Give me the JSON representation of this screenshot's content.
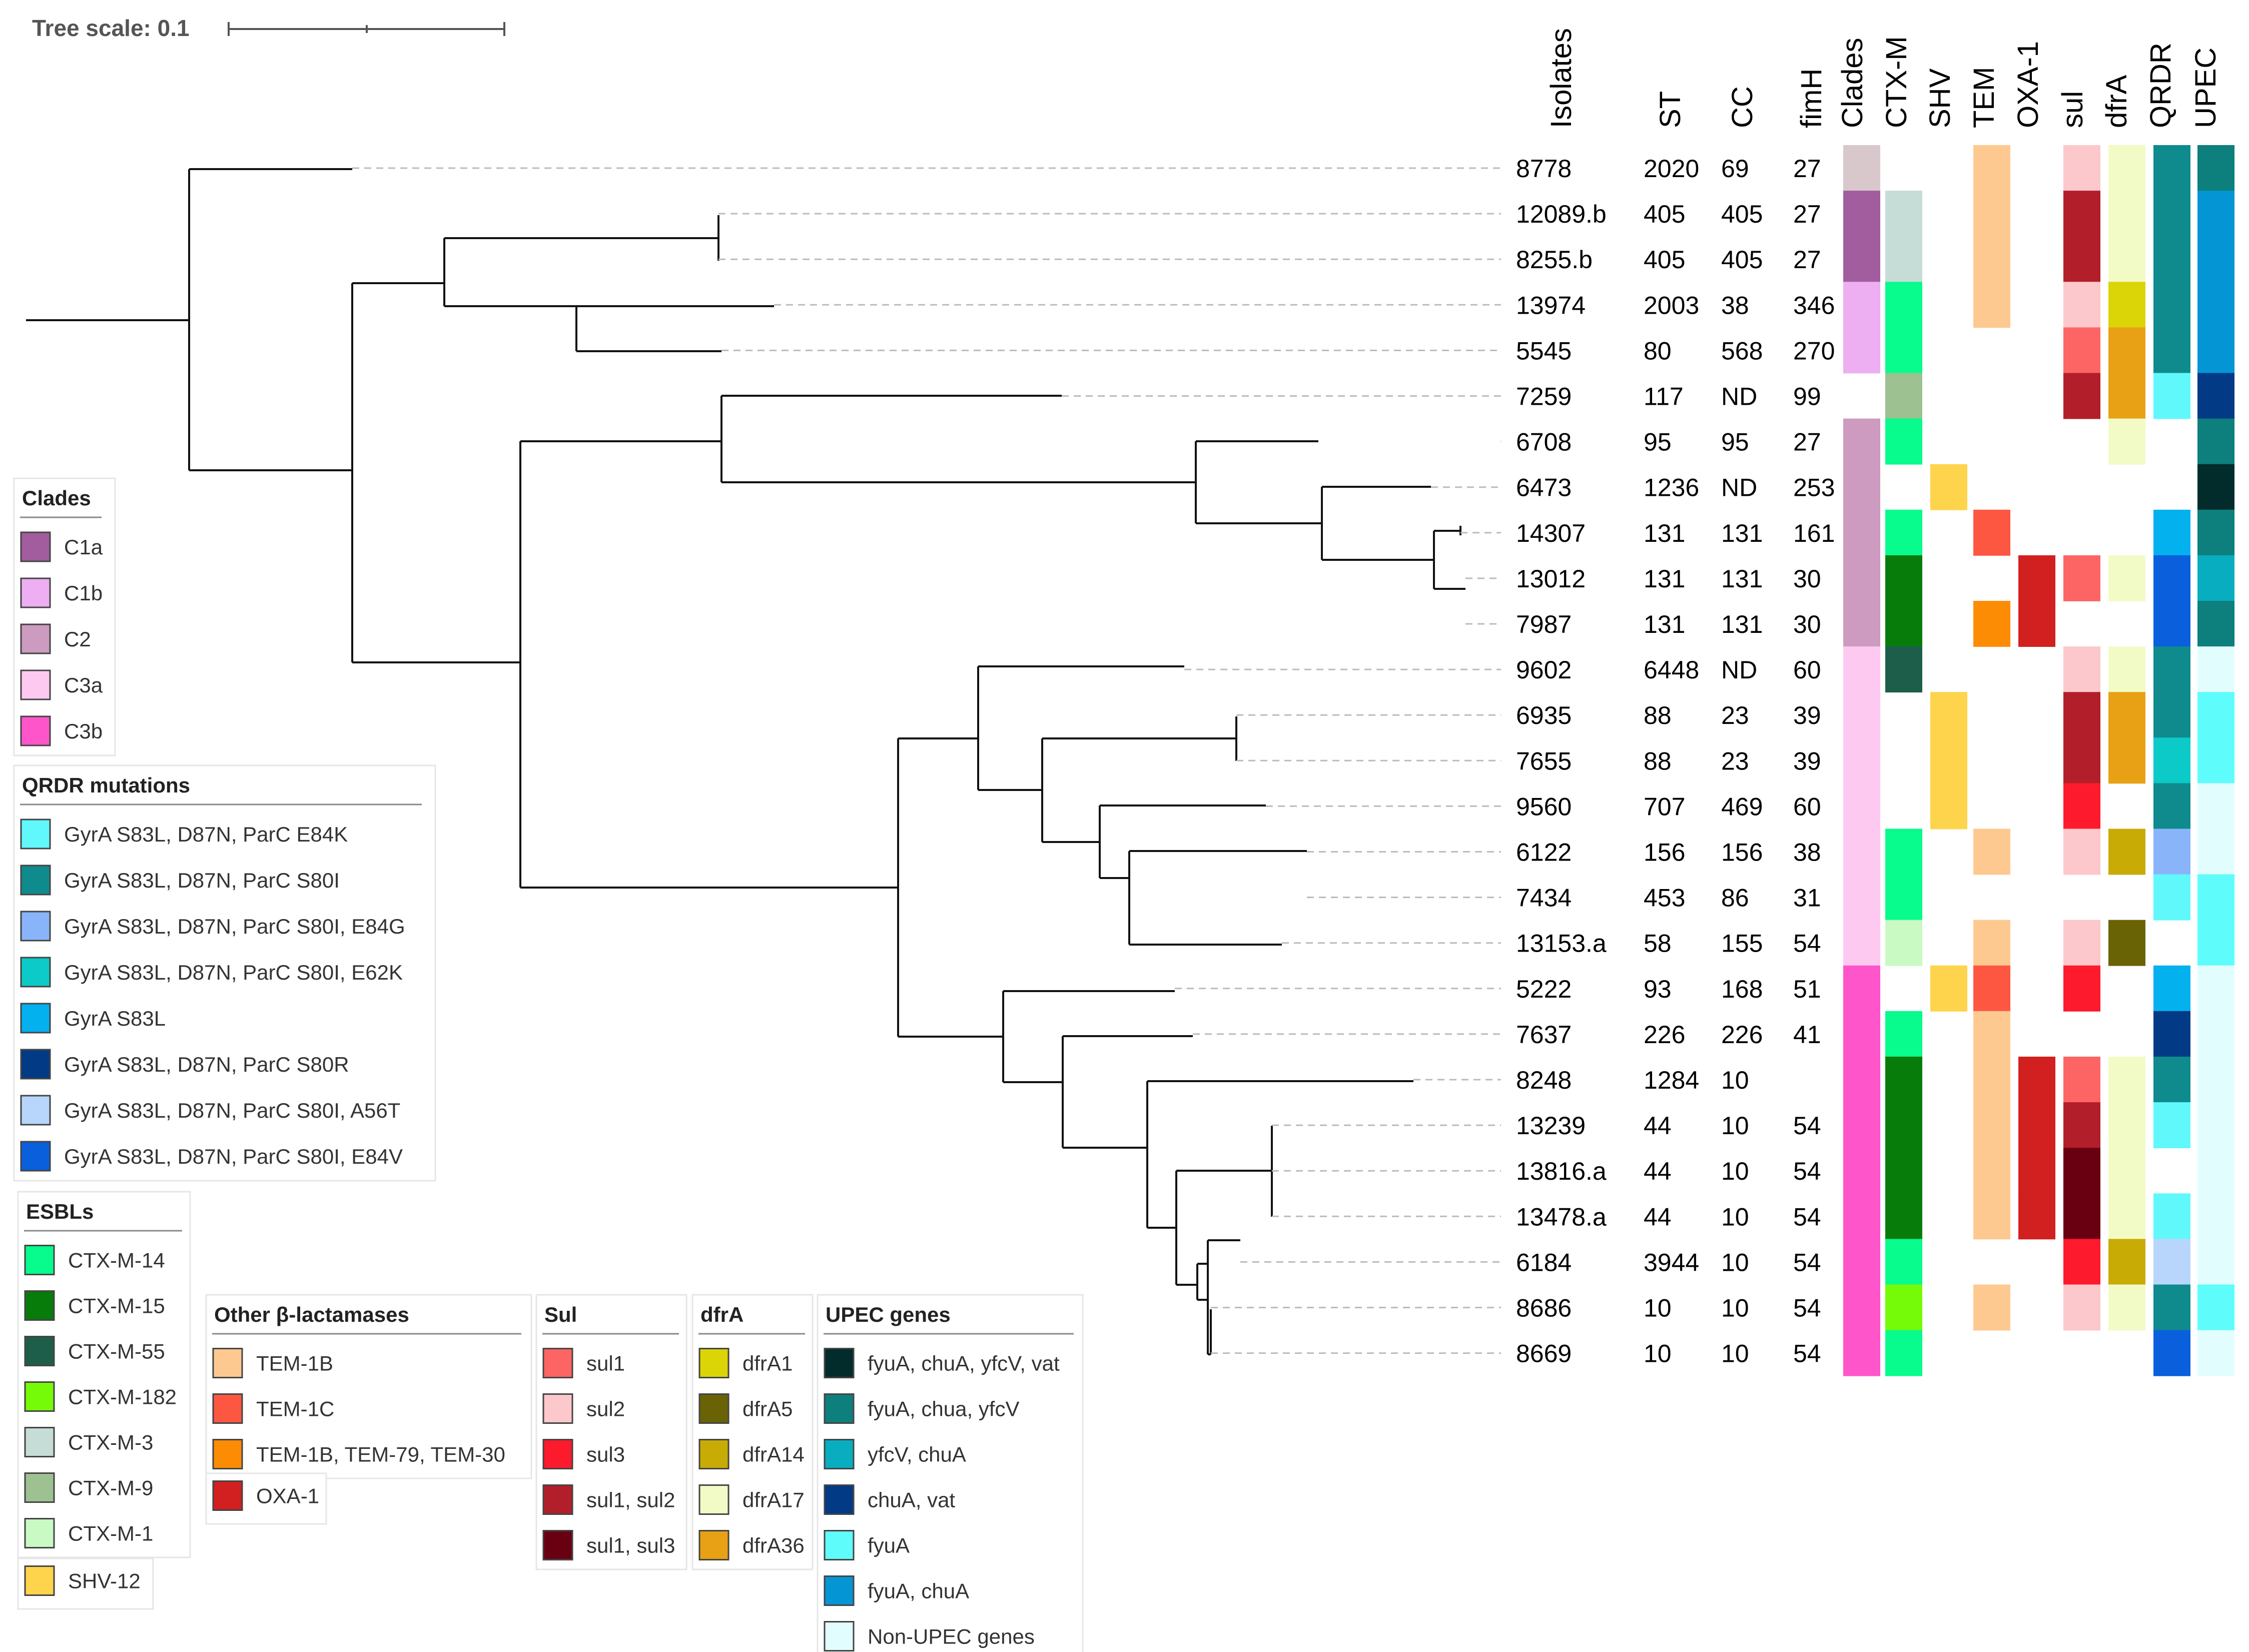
{
  "tree_scale": {
    "label": "Tree scale: 0.1"
  },
  "headers": [
    "Isolates",
    "ST",
    "CC",
    "fimH",
    "Clades",
    "CTX-M",
    "SHV",
    "TEM",
    "OXA-1",
    "sul",
    "dfrA",
    "QRDR",
    "UPEC"
  ],
  "colors": {
    "C1a": "#a25d9f",
    "C1b": "#edaef2",
    "C2": "#cc9bbf",
    "C3a": "#fec9f0",
    "C3b": "#fe55cb",
    "C0": "#d8c8cc",
    "q1": "#61f8fc",
    "q2": "#0f8b8e",
    "q3": "#8ab4f9",
    "q4": "#0ccac7",
    "q5": "#03b1ef",
    "q6": "#033a85",
    "q7": "#b8d6fb",
    "q8": "#0a5fdc",
    "x14": "#07fb8d",
    "x15": "#077c0b",
    "x55": "#1d5e4b",
    "x182": "#75fb08",
    "x3": "#c5ddd6",
    "x9": "#9dc190",
    "x1": "#c9fac3",
    "s12": "#fdd44b",
    "t1b": "#fec990",
    "t1c": "#fd5742",
    "t79": "#fd8c05",
    "oxa": "#d21f1f",
    "su1": "#fd6565",
    "su2": "#fdc8cb",
    "su3": "#fd1a2d",
    "su12": "#b21f2a",
    "su13": "#690012",
    "d1": "#dbd406",
    "d5": "#696306",
    "d14": "#c9ab06",
    "d17": "#f2fbc6",
    "d36": "#e8a114",
    "u1": "#022c2b",
    "u2": "#0d7f7d",
    "u3": "#08aec0",
    "u4": "#023a86",
    "u5": "#5ffcfc",
    "u6": "#0495d4",
    "u7": "#e2fdfd"
  },
  "isolates": [
    {
      "id": "8778",
      "st": "2020",
      "cc": "69",
      "fimh": "27",
      "clade": "C0",
      "ctxm": null,
      "shv": null,
      "tem": "t1b",
      "oxa": null,
      "sul": "su2",
      "dfra": "d17",
      "qrdr": "q2",
      "upec": "u2"
    },
    {
      "id": "12089.b",
      "st": "405",
      "cc": "405",
      "fimh": "27",
      "clade": "C1a",
      "ctxm": "x3",
      "shv": null,
      "tem": "t1b",
      "oxa": null,
      "sul": "su12",
      "dfra": "d17",
      "qrdr": "q2",
      "upec": "u6"
    },
    {
      "id": "8255.b",
      "st": "405",
      "cc": "405",
      "fimh": "27",
      "clade": "C1a",
      "ctxm": "x3",
      "shv": null,
      "tem": "t1b",
      "oxa": null,
      "sul": "su12",
      "dfra": "d17",
      "qrdr": "q2",
      "upec": "u6"
    },
    {
      "id": "13974",
      "st": "2003",
      "cc": "38",
      "fimh": "346",
      "clade": "C1b",
      "ctxm": "x14",
      "shv": null,
      "tem": "t1b",
      "oxa": null,
      "sul": "su2",
      "dfra": "d1",
      "qrdr": "q2",
      "upec": "u6"
    },
    {
      "id": "5545",
      "st": "80",
      "cc": "568",
      "fimh": "270",
      "clade": "C1b",
      "ctxm": "x14",
      "shv": null,
      "tem": null,
      "oxa": null,
      "sul": "su1",
      "dfra": "d36",
      "qrdr": "q2",
      "upec": "u6"
    },
    {
      "id": "7259",
      "st": "117",
      "cc": "ND",
      "fimh": "99",
      "clade": null,
      "ctxm": "x9",
      "shv": null,
      "tem": null,
      "oxa": null,
      "sul": "su12",
      "dfra": "d36",
      "qrdr": "q1",
      "upec": "u4"
    },
    {
      "id": "6708",
      "st": "95",
      "cc": "95",
      "fimh": "27",
      "clade": "C2",
      "ctxm": "x14",
      "shv": null,
      "tem": null,
      "oxa": null,
      "sul": null,
      "dfra": "d17",
      "qrdr": null,
      "upec": "u2"
    },
    {
      "id": "6473",
      "st": "1236",
      "cc": "ND",
      "fimh": "253",
      "clade": "C2",
      "ctxm": null,
      "shv": "s12",
      "tem": null,
      "oxa": null,
      "sul": null,
      "dfra": null,
      "qrdr": null,
      "upec": "u1"
    },
    {
      "id": "14307",
      "st": "131",
      "cc": "131",
      "fimh": "161",
      "clade": "C2",
      "ctxm": "x14",
      "shv": null,
      "tem": "t1c",
      "oxa": null,
      "sul": null,
      "dfra": null,
      "qrdr": "q5",
      "upec": "u2"
    },
    {
      "id": "13012",
      "st": "131",
      "cc": "131",
      "fimh": "30",
      "clade": "C2",
      "ctxm": "x15",
      "shv": null,
      "tem": null,
      "oxa": "oxa",
      "sul": "su1",
      "dfra": "d17",
      "qrdr": "q8",
      "upec": "u3"
    },
    {
      "id": "7987",
      "st": "131",
      "cc": "131",
      "fimh": "30",
      "clade": "C2",
      "ctxm": "x15",
      "shv": null,
      "tem": "t79",
      "oxa": "oxa",
      "sul": null,
      "dfra": null,
      "qrdr": "q8",
      "upec": "u2"
    },
    {
      "id": "9602",
      "st": "6448",
      "cc": "ND",
      "fimh": "60",
      "clade": "C3a",
      "ctxm": "x55",
      "shv": null,
      "tem": null,
      "oxa": null,
      "sul": "su2",
      "dfra": "d17",
      "qrdr": "q2",
      "upec": "u7"
    },
    {
      "id": "6935",
      "st": "88",
      "cc": "23",
      "fimh": "39",
      "clade": "C3a",
      "ctxm": null,
      "shv": "s12",
      "tem": null,
      "oxa": null,
      "sul": "su12",
      "dfra": "d36",
      "qrdr": "q2",
      "upec": "u5"
    },
    {
      "id": "7655",
      "st": "88",
      "cc": "23",
      "fimh": "39",
      "clade": "C3a",
      "ctxm": null,
      "shv": "s12",
      "tem": null,
      "oxa": null,
      "sul": "su12",
      "dfra": "d36",
      "qrdr": "q4",
      "upec": "u5"
    },
    {
      "id": "9560",
      "st": "707",
      "cc": "469",
      "fimh": "60",
      "clade": "C3a",
      "ctxm": null,
      "shv": "s12",
      "tem": null,
      "oxa": null,
      "sul": "su3",
      "dfra": null,
      "qrdr": "q2",
      "upec": "u7"
    },
    {
      "id": "6122",
      "st": "156",
      "cc": "156",
      "fimh": "38",
      "clade": "C3a",
      "ctxm": "x14",
      "shv": null,
      "tem": "t1b",
      "oxa": null,
      "sul": "su2",
      "dfra": "d14",
      "qrdr": "q3",
      "upec": "u7"
    },
    {
      "id": "7434",
      "st": "453",
      "cc": "86",
      "fimh": "31",
      "clade": "C3a",
      "ctxm": "x14",
      "shv": null,
      "tem": null,
      "oxa": null,
      "sul": null,
      "dfra": null,
      "qrdr": "q1",
      "upec": "u5"
    },
    {
      "id": "13153.a",
      "st": "58",
      "cc": "155",
      "fimh": "54",
      "clade": "C3a",
      "ctxm": "x1",
      "shv": null,
      "tem": "t1b",
      "oxa": null,
      "sul": "su2",
      "dfra": "d5",
      "qrdr": null,
      "upec": "u5"
    },
    {
      "id": "5222",
      "st": "93",
      "cc": "168",
      "fimh": "51",
      "clade": "C3b",
      "ctxm": null,
      "shv": "s12",
      "tem": "t1c",
      "oxa": null,
      "sul": "su3",
      "dfra": null,
      "qrdr": "q5",
      "upec": "u7"
    },
    {
      "id": "7637",
      "st": "226",
      "cc": "226",
      "fimh": "41",
      "clade": "C3b",
      "ctxm": "x14",
      "shv": null,
      "tem": "t1b",
      "oxa": null,
      "sul": null,
      "dfra": null,
      "qrdr": "q6",
      "upec": "u7"
    },
    {
      "id": "8248",
      "st": "1284",
      "cc": "10",
      "fimh": "",
      "clade": "C3b",
      "ctxm": "x15",
      "shv": null,
      "tem": "t1b",
      "oxa": "oxa",
      "sul": "su1",
      "dfra": "d17",
      "qrdr": "q2",
      "upec": "u7"
    },
    {
      "id": "13239",
      "st": "44",
      "cc": "10",
      "fimh": "54",
      "clade": "C3b",
      "ctxm": "x15",
      "shv": null,
      "tem": "t1b",
      "oxa": "oxa",
      "sul": "su12",
      "dfra": "d17",
      "qrdr": "q1",
      "upec": "u7"
    },
    {
      "id": "13816.a",
      "st": "44",
      "cc": "10",
      "fimh": "54",
      "clade": "C3b",
      "ctxm": "x15",
      "shv": null,
      "tem": "t1b",
      "oxa": "oxa",
      "sul": "su13",
      "dfra": "d17",
      "qrdr": null,
      "upec": "u7"
    },
    {
      "id": "13478.a",
      "st": "44",
      "cc": "10",
      "fimh": "54",
      "clade": "C3b",
      "ctxm": "x15",
      "shv": null,
      "tem": "t1b",
      "oxa": "oxa",
      "sul": "su13",
      "dfra": "d17",
      "qrdr": "q1",
      "upec": "u7"
    },
    {
      "id": "6184",
      "st": "3944",
      "cc": "10",
      "fimh": "54",
      "clade": "C3b",
      "ctxm": "x14",
      "shv": null,
      "tem": null,
      "oxa": null,
      "sul": "su3",
      "dfra": "d14",
      "qrdr": "q7",
      "upec": "u7"
    },
    {
      "id": "8686",
      "st": "10",
      "cc": "10",
      "fimh": "54",
      "clade": "C3b",
      "ctxm": "x182",
      "shv": null,
      "tem": "t1b",
      "oxa": null,
      "sul": "su2",
      "dfra": "d17",
      "qrdr": "q2",
      "upec": "u5"
    },
    {
      "id": "8669",
      "st": "10",
      "cc": "10",
      "fimh": "54",
      "clade": "C3b",
      "ctxm": "x14",
      "shv": null,
      "tem": null,
      "oxa": null,
      "sul": null,
      "dfra": null,
      "qrdr": "q8",
      "upec": "u7"
    }
  ],
  "legends": [
    {
      "title": "Clades",
      "items": [
        {
          "c": "C1a",
          "label": "C1a"
        },
        {
          "c": "C1b",
          "label": "C1b"
        },
        {
          "c": "C2",
          "label": "C2"
        },
        {
          "c": "C3a",
          "label": "C3a"
        },
        {
          "c": "C3b",
          "label": "C3b"
        }
      ]
    },
    {
      "title": "QRDR mutations",
      "items": [
        {
          "c": "q1",
          "label": "GyrA S83L, D87N, ParC E84K"
        },
        {
          "c": "q2",
          "label": "GyrA S83L, D87N, ParC S80I"
        },
        {
          "c": "q3",
          "label": "GyrA S83L, D87N, ParC S80I, E84G"
        },
        {
          "c": "q4",
          "label": "GyrA S83L, D87N, ParC S80I, E62K"
        },
        {
          "c": "q5",
          "label": "GyrA S83L"
        },
        {
          "c": "q6",
          "label": "GyrA S83L, D87N, ParC S80R"
        },
        {
          "c": "q7",
          "label": "GyrA S83L, D87N, ParC S80I, A56T"
        },
        {
          "c": "q8",
          "label": "GyrA S83L, D87N, ParC S80I, E84V"
        }
      ]
    },
    {
      "title": "ESBLs",
      "items": [
        {
          "c": "x14",
          "label": "CTX-M-14"
        },
        {
          "c": "x15",
          "label": "CTX-M-15"
        },
        {
          "c": "x55",
          "label": "CTX-M-55"
        },
        {
          "c": "x182",
          "label": "CTX-M-182"
        },
        {
          "c": "x3",
          "label": "CTX-M-3"
        },
        {
          "c": "x9",
          "label": "CTX-M-9"
        },
        {
          "c": "x1",
          "label": "CTX-M-1"
        }
      ]
    },
    {
      "title": "",
      "items": [
        {
          "c": "s12",
          "label": "SHV-12"
        }
      ]
    },
    {
      "title": "Other β-lactamases",
      "items": [
        {
          "c": "t1b",
          "label": "TEM-1B"
        },
        {
          "c": "t1c",
          "label": "TEM-1C"
        },
        {
          "c": "t79",
          "label": "TEM-1B, TEM-79, TEM-30"
        }
      ]
    },
    {
      "title": "",
      "items": [
        {
          "c": "oxa",
          "label": "OXA-1"
        }
      ]
    },
    {
      "title": "Sul",
      "items": [
        {
          "c": "su1",
          "label": "sul1"
        },
        {
          "c": "su2",
          "label": "sul2"
        },
        {
          "c": "su3",
          "label": "sul3"
        },
        {
          "c": "su12",
          "label": "sul1, sul2"
        },
        {
          "c": "su13",
          "label": "sul1, sul3"
        }
      ]
    },
    {
      "title": "dfrA",
      "items": [
        {
          "c": "d1",
          "label": "dfrA1"
        },
        {
          "c": "d5",
          "label": "dfrA5"
        },
        {
          "c": "d14",
          "label": "dfrA14"
        },
        {
          "c": "d17",
          "label": "dfrA17"
        },
        {
          "c": "d36",
          "label": "dfrA36"
        }
      ]
    },
    {
      "title": "UPEC genes",
      "items": [
        {
          "c": "u1",
          "label": "fyuA, chuA, yfcV, vat"
        },
        {
          "c": "u2",
          "label": "fyuA, chua, yfcV"
        },
        {
          "c": "u3",
          "label": "yfcV, chuA"
        },
        {
          "c": "u4",
          "label": "chuA, vat"
        },
        {
          "c": "u5",
          "label": "fyuA"
        },
        {
          "c": "u6",
          "label": "fyuA, chuA"
        },
        {
          "c": "u7",
          "label": "Non-UPEC genes"
        }
      ]
    }
  ]
}
